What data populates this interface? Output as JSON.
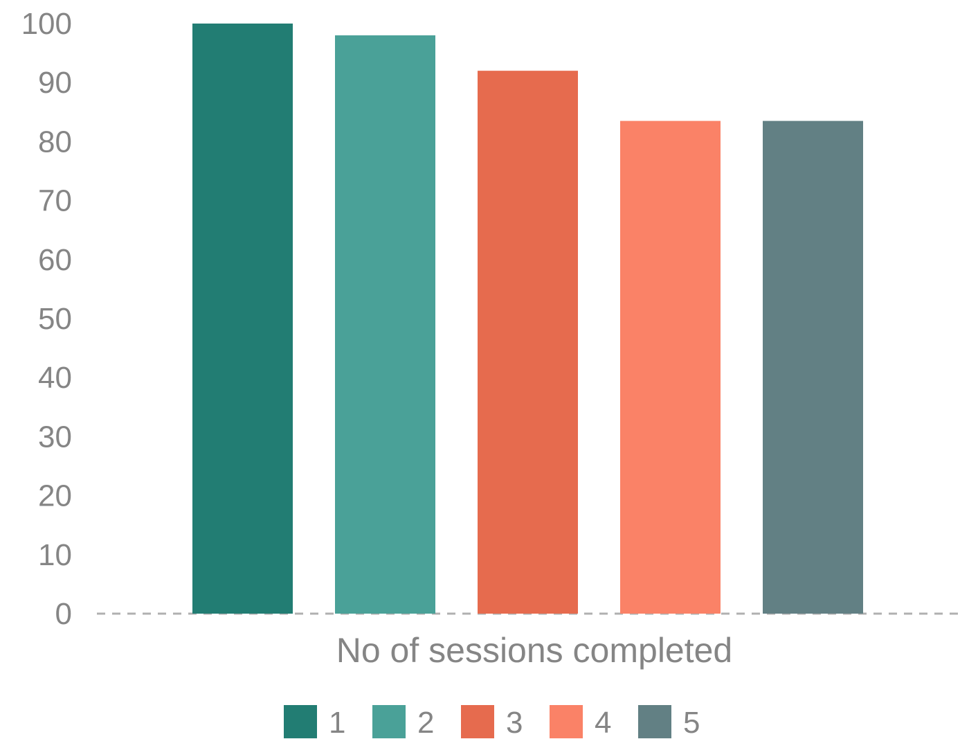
{
  "chart_data": {
    "type": "bar",
    "categories": [
      "No of sessions completed"
    ],
    "series": [
      {
        "name": "1",
        "values": [
          100
        ],
        "color": "#227D73"
      },
      {
        "name": "2",
        "values": [
          98
        ],
        "color": "#4AA198"
      },
      {
        "name": "3",
        "values": [
          92
        ],
        "color": "#E66B4E"
      },
      {
        "name": "4",
        "values": [
          83.5
        ],
        "color": "#FA8267"
      },
      {
        "name": "5",
        "values": [
          83.5
        ],
        "color": "#628084"
      }
    ],
    "xlabel": "No of sessions completed",
    "ylabel": "",
    "ylim": [
      0,
      100
    ],
    "yticks": [
      0,
      10,
      20,
      30,
      40,
      50,
      60,
      70,
      80,
      90,
      100
    ],
    "grid": false,
    "baseline_style": "dashed",
    "legend_position": "bottom"
  }
}
